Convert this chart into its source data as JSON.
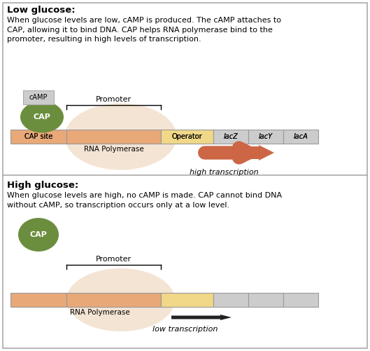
{
  "title_low": "Low glucose:",
  "title_high": "High glucose:",
  "text_low": "When glucose levels are low, cAMP is produced. The cAMP attaches to\nCAP, allowing it to bind DNA. CAP helps RNA polymerase bind to the\npromoter, resulting in high levels of transcription.",
  "text_high": "When glucose levels are high, no cAMP is made. CAP cannot bind DNA\nwithout cAMP, so transcription occurs only at a low level.",
  "bg_color": "#ffffff",
  "border_color": "#aaaaaa",
  "cap_color": "#6b8e3e",
  "cap_text_color": "#ffffff",
  "camp_box_color": "#cccccc",
  "rna_poly_color": "#e8c4a0",
  "dna_cap_site_color": "#e8a878",
  "dna_operator_color": "#f0d888",
  "dna_lac_color": "#cccccc",
  "arrow_high_color": "#cc6644",
  "arrow_low_color": "#222222",
  "promoter_label": "Promoter",
  "operator_label": "Operator",
  "cap_site_label": "CAP site",
  "rna_poly_label": "RNA Polymerase",
  "lac_labels": [
    "lacZ",
    "lacY",
    "lacA"
  ],
  "high_transcription_label": "high transcription",
  "low_transcription_label": "low transcription",
  "cap_label": "CAP",
  "camp_label": "cAMP"
}
